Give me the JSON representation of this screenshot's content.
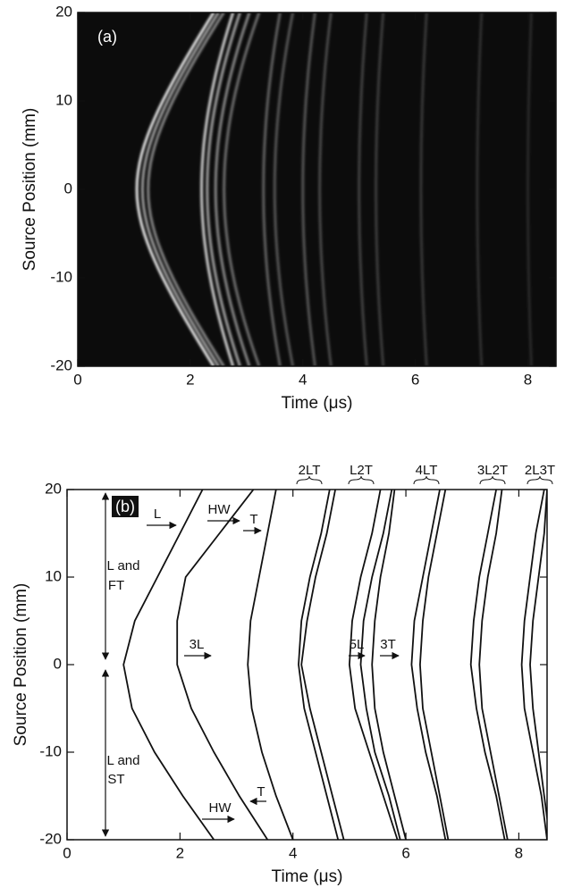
{
  "chart_data": [
    {
      "type": "image",
      "annotation": "(a)",
      "xlabel": "Time (μs)",
      "ylabel": "Source Position (mm)",
      "xlim": [
        0,
        8.5
      ],
      "ylim": [
        -20,
        20
      ],
      "xticks": [
        0,
        2,
        4,
        6,
        8
      ],
      "yticks": [
        -20,
        -10,
        0,
        10,
        20
      ]
    },
    {
      "type": "line",
      "annotation": "(b)",
      "xlabel": "Time (μs)",
      "ylabel": "Source Position (mm)",
      "xlim": [
        0,
        8.5
      ],
      "ylim": [
        -20,
        20
      ],
      "xticks": [
        0,
        2,
        4,
        6,
        8
      ],
      "yticks": [
        -20,
        -10,
        0,
        10,
        20
      ],
      "color": "#111111",
      "annotations": [
        "L",
        "HW",
        "T",
        "L and",
        "FT",
        "3L",
        "5L",
        "3T",
        "L and",
        "ST",
        "T",
        "HW",
        "2LT",
        "L2T",
        "4LT",
        "3L2T",
        "2L3T"
      ],
      "y": [
        -20,
        -15,
        -10,
        -5,
        0,
        5,
        10,
        15,
        20
      ],
      "series": [
        {
          "values": [
            2.6,
            2.05,
            1.55,
            1.15,
            1.0,
            1.2,
            1.6,
            2.0,
            2.4
          ]
        },
        {
          "values": [
            3.55,
            3.05,
            2.6,
            2.2,
            1.95,
            1.95,
            2.1,
            2.7,
            3.3
          ]
        },
        {
          "values": [
            4.0,
            3.7,
            3.45,
            3.27,
            3.2,
            3.25,
            3.4,
            3.55,
            3.7
          ]
        },
        {
          "values": [
            4.8,
            4.6,
            4.4,
            4.2,
            4.1,
            4.15,
            4.3,
            4.5,
            4.65
          ]
        },
        {
          "values": [
            4.9,
            4.7,
            4.5,
            4.3,
            4.15,
            4.25,
            4.4,
            4.6,
            4.75
          ]
        },
        {
          "values": [
            5.85,
            5.6,
            5.35,
            5.1,
            5.0,
            5.05,
            5.2,
            5.4,
            5.55
          ]
        },
        {
          "values": [
            5.9,
            5.7,
            5.45,
            5.3,
            5.2,
            5.25,
            5.4,
            5.6,
            5.75
          ]
        },
        {
          "values": [
            6.0,
            5.8,
            5.6,
            5.45,
            5.4,
            5.45,
            5.55,
            5.7,
            5.8
          ]
        },
        {
          "values": [
            6.7,
            6.55,
            6.35,
            6.2,
            6.1,
            6.15,
            6.3,
            6.45,
            6.6
          ]
        },
        {
          "values": [
            6.75,
            6.6,
            6.45,
            6.3,
            6.25,
            6.3,
            6.4,
            6.55,
            6.7
          ]
        },
        {
          "values": [
            7.75,
            7.6,
            7.4,
            7.25,
            7.15,
            7.2,
            7.3,
            7.45,
            7.6
          ]
        },
        {
          "values": [
            7.8,
            7.65,
            7.5,
            7.35,
            7.3,
            7.35,
            7.45,
            7.6,
            7.7
          ]
        },
        {
          "values": [
            8.5,
            8.4,
            8.25,
            8.1,
            8.05,
            8.1,
            8.2,
            8.3,
            8.45
          ]
        },
        {
          "values": [
            8.55,
            8.45,
            8.35,
            8.25,
            8.2,
            8.25,
            8.35,
            8.45,
            8.5
          ]
        }
      ]
    }
  ]
}
